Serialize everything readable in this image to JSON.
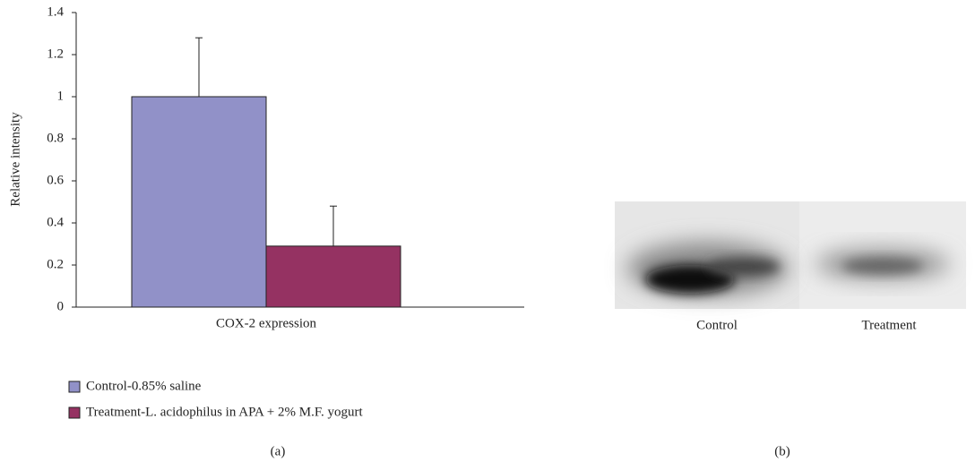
{
  "chart_data": {
    "type": "bar",
    "y_label": "Relative intensity",
    "categories": [
      "COX-2 expression"
    ],
    "series": [
      {
        "name": "Control-0.85% saline",
        "color": "#9191c8",
        "values": [
          1.0
        ],
        "errors": [
          0.28
        ]
      },
      {
        "name": "Treatment-L. acidophilus in APA + 2% M.F. yogurt",
        "color": "#953262",
        "values": [
          0.29
        ],
        "errors": [
          0.19
        ]
      }
    ],
    "ylim": [
      0,
      1.4
    ],
    "yticks": [
      0,
      0.2,
      0.4,
      0.6,
      0.8,
      1,
      1.2,
      1.4
    ],
    "grid": false
  },
  "blot": {
    "lanes": [
      "Control",
      "Treatment"
    ]
  },
  "panel_labels": [
    "(a)",
    "(b)"
  ]
}
